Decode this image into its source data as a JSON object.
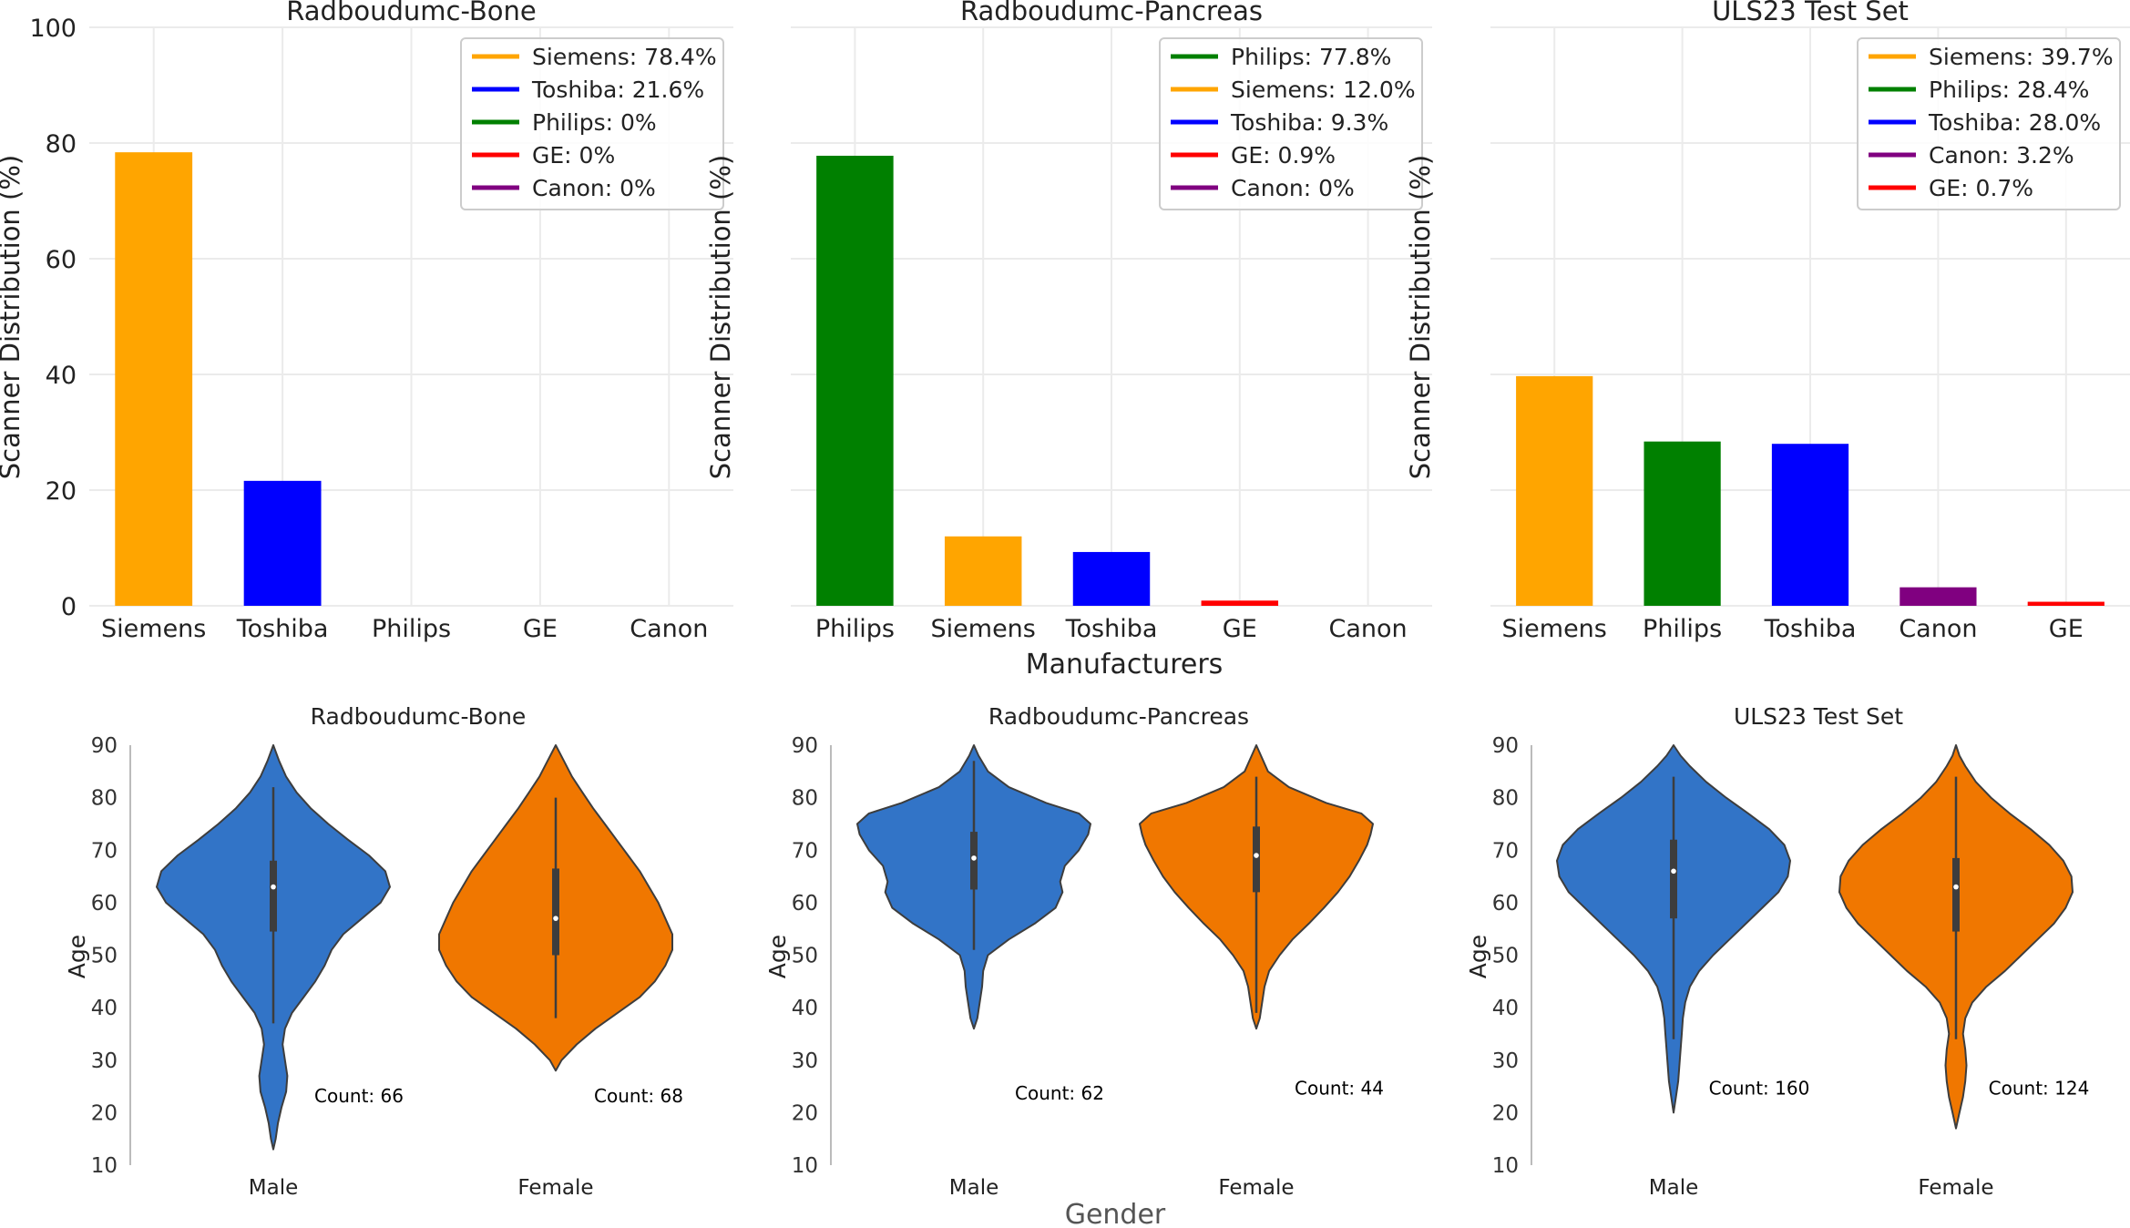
{
  "figure": {
    "top_xlabel": "Manufacturers",
    "bottom_xlabel": "Gender"
  },
  "colors": {
    "Siemens": "#ffa500",
    "Toshiba": "#0000ff",
    "Philips": "#008000",
    "GE": "#ff0000",
    "Canon": "#800080",
    "Male": "#3274c7",
    "Female": "#f07700",
    "grid": "#ebebeb"
  },
  "chart_data": [
    {
      "type": "bar",
      "title": "Radboudumc-Bone",
      "xlabel": "",
      "ylabel": "Scanner Distribution (%)",
      "ylim": [
        0,
        100
      ],
      "yticks": [
        0,
        20,
        40,
        60,
        80,
        100
      ],
      "categories": [
        "Siemens",
        "Toshiba",
        "Philips",
        "GE",
        "Canon"
      ],
      "values": [
        78.4,
        21.6,
        0,
        0,
        0
      ],
      "legend": [
        "Siemens: 78.4%",
        "Toshiba: 21.6%",
        "Philips: 0%",
        "GE: 0%",
        "Canon: 0%"
      ],
      "legend_keys": [
        "Siemens",
        "Toshiba",
        "Philips",
        "GE",
        "Canon"
      ],
      "legend_loc": "upper right"
    },
    {
      "type": "bar",
      "title": "Radboudumc-Pancreas",
      "xlabel": "Manufacturers",
      "ylabel": "Scanner Distribution (%)",
      "ylim": [
        0,
        100
      ],
      "categories": [
        "Philips",
        "Siemens",
        "Toshiba",
        "GE",
        "Canon"
      ],
      "values": [
        77.8,
        12.0,
        9.3,
        0.9,
        0
      ],
      "legend": [
        "Philips: 77.8%",
        "Siemens: 12.0%",
        "Toshiba: 9.3%",
        "GE: 0.9%",
        "Canon: 0%"
      ],
      "legend_keys": [
        "Philips",
        "Siemens",
        "Toshiba",
        "GE",
        "Canon"
      ],
      "legend_loc": "upper right"
    },
    {
      "type": "bar",
      "title": "ULS23 Test Set",
      "xlabel": "",
      "ylabel": "Scanner Distribution (%)",
      "ylim": [
        0,
        100
      ],
      "categories": [
        "Siemens",
        "Philips",
        "Toshiba",
        "Canon",
        "GE"
      ],
      "values": [
        39.7,
        28.4,
        28.0,
        3.2,
        0.7
      ],
      "legend": [
        "Siemens: 39.7%",
        "Philips: 28.4%",
        "Toshiba: 28.0%",
        "Canon: 3.2%",
        "GE: 0.7%"
      ],
      "legend_keys": [
        "Siemens",
        "Philips",
        "Toshiba",
        "Canon",
        "GE"
      ],
      "legend_loc": "upper right"
    },
    {
      "type": "violin",
      "title": "Radboudumc-Bone",
      "xlabel": "",
      "ylabel": "Age",
      "ylim": [
        10,
        90
      ],
      "yticks": [
        10,
        20,
        30,
        40,
        50,
        60,
        70,
        80,
        90
      ],
      "groups": [
        {
          "name": "Male",
          "count_label": "Count: 66",
          "count_y": 23,
          "whisker": [
            37,
            82
          ],
          "quartiles": [
            54.5,
            68
          ],
          "median": 63,
          "range": [
            13,
            90
          ],
          "profile": [
            [
              13,
              0
            ],
            [
              15,
              0.02
            ],
            [
              18,
              0.04
            ],
            [
              21,
              0.07
            ],
            [
              24,
              0.11
            ],
            [
              27,
              0.12
            ],
            [
              30,
              0.1
            ],
            [
              33,
              0.08
            ],
            [
              36,
              0.1
            ],
            [
              39,
              0.16
            ],
            [
              42,
              0.26
            ],
            [
              45,
              0.36
            ],
            [
              48,
              0.44
            ],
            [
              51,
              0.5
            ],
            [
              54,
              0.6
            ],
            [
              57,
              0.76
            ],
            [
              60,
              0.92
            ],
            [
              63,
              1.0
            ],
            [
              66,
              0.96
            ],
            [
              69,
              0.82
            ],
            [
              72,
              0.64
            ],
            [
              75,
              0.47
            ],
            [
              78,
              0.32
            ],
            [
              81,
              0.2
            ],
            [
              84,
              0.11
            ],
            [
              87,
              0.05
            ],
            [
              90,
              0
            ]
          ]
        },
        {
          "name": "Female",
          "count_label": "Count: 68",
          "count_y": 23,
          "whisker": [
            38,
            80
          ],
          "quartiles": [
            50,
            66.5
          ],
          "median": 57,
          "range": [
            28,
            90
          ],
          "profile": [
            [
              28,
              0
            ],
            [
              30,
              0.05
            ],
            [
              33,
              0.18
            ],
            [
              36,
              0.34
            ],
            [
              39,
              0.53
            ],
            [
              42,
              0.72
            ],
            [
              45,
              0.85
            ],
            [
              48,
              0.94
            ],
            [
              51,
              1.0
            ],
            [
              54,
              1.0
            ],
            [
              57,
              0.94
            ],
            [
              60,
              0.88
            ],
            [
              63,
              0.8
            ],
            [
              66,
              0.72
            ],
            [
              69,
              0.62
            ],
            [
              72,
              0.52
            ],
            [
              75,
              0.42
            ],
            [
              78,
              0.32
            ],
            [
              81,
              0.23
            ],
            [
              84,
              0.14
            ],
            [
              87,
              0.07
            ],
            [
              90,
              0
            ]
          ]
        }
      ]
    },
    {
      "type": "violin",
      "title": "Radboudumc-Pancreas",
      "xlabel": "Gender",
      "ylabel": "Age",
      "ylim": [
        10,
        90
      ],
      "yticks": [
        10,
        20,
        30,
        40,
        50,
        60,
        70,
        80,
        90
      ],
      "groups": [
        {
          "name": "Male",
          "count_label": "Count: 62",
          "count_y": 23.5,
          "whisker": [
            51,
            87
          ],
          "quartiles": [
            62.5,
            73.5
          ],
          "median": 68.5,
          "range": [
            36,
            90
          ],
          "profile": [
            [
              36,
              0
            ],
            [
              38,
              0.03
            ],
            [
              41,
              0.05
            ],
            [
              44,
              0.07
            ],
            [
              47,
              0.08
            ],
            [
              50,
              0.12
            ],
            [
              53,
              0.3
            ],
            [
              56,
              0.52
            ],
            [
              59,
              0.7
            ],
            [
              62,
              0.76
            ],
            [
              64,
              0.74
            ],
            [
              67,
              0.78
            ],
            [
              70,
              0.9
            ],
            [
              73,
              0.98
            ],
            [
              75,
              1.0
            ],
            [
              77,
              0.9
            ],
            [
              79,
              0.62
            ],
            [
              82,
              0.3
            ],
            [
              85,
              0.12
            ],
            [
              88,
              0.04
            ],
            [
              90,
              0
            ]
          ]
        },
        {
          "name": "Female",
          "count_label": "Count: 44",
          "count_y": 24.5,
          "whisker": [
            39,
            84
          ],
          "quartiles": [
            62,
            74.5
          ],
          "median": 69,
          "range": [
            36,
            90
          ],
          "profile": [
            [
              36,
              0
            ],
            [
              38,
              0.03
            ],
            [
              41,
              0.05
            ],
            [
              44,
              0.07
            ],
            [
              47,
              0.11
            ],
            [
              50,
              0.2
            ],
            [
              53,
              0.31
            ],
            [
              56,
              0.45
            ],
            [
              59,
              0.58
            ],
            [
              62,
              0.7
            ],
            [
              65,
              0.8
            ],
            [
              68,
              0.88
            ],
            [
              71,
              0.95
            ],
            [
              73,
              0.98
            ],
            [
              75,
              1.0
            ],
            [
              77,
              0.9
            ],
            [
              79,
              0.6
            ],
            [
              82,
              0.28
            ],
            [
              85,
              0.1
            ],
            [
              88,
              0.04
            ],
            [
              90,
              0
            ]
          ]
        }
      ]
    },
    {
      "type": "violin",
      "title": "ULS23 Test Set",
      "xlabel": "",
      "ylabel": "Age",
      "ylim": [
        10,
        90
      ],
      "yticks": [
        10,
        20,
        30,
        40,
        50,
        60,
        70,
        80,
        90
      ],
      "groups": [
        {
          "name": "Male",
          "count_label": "Count: 160",
          "count_y": 24.5,
          "whisker": [
            34,
            84
          ],
          "quartiles": [
            57,
            72
          ],
          "median": 66,
          "range": [
            20,
            90
          ],
          "profile": [
            [
              20,
              0
            ],
            [
              23,
              0.02
            ],
            [
              26,
              0.04
            ],
            [
              29,
              0.05
            ],
            [
              32,
              0.06
            ],
            [
              35,
              0.07
            ],
            [
              38,
              0.08
            ],
            [
              41,
              0.1
            ],
            [
              44,
              0.14
            ],
            [
              47,
              0.22
            ],
            [
              50,
              0.34
            ],
            [
              53,
              0.48
            ],
            [
              56,
              0.62
            ],
            [
              59,
              0.76
            ],
            [
              62,
              0.9
            ],
            [
              65,
              0.98
            ],
            [
              68,
              1.0
            ],
            [
              71,
              0.95
            ],
            [
              74,
              0.82
            ],
            [
              77,
              0.64
            ],
            [
              80,
              0.45
            ],
            [
              83,
              0.28
            ],
            [
              86,
              0.14
            ],
            [
              88,
              0.06
            ],
            [
              90,
              0
            ]
          ]
        },
        {
          "name": "Female",
          "count_label": "Count: 124",
          "count_y": 24.5,
          "whisker": [
            34,
            84
          ],
          "quartiles": [
            54.5,
            68.5
          ],
          "median": 63,
          "range": [
            17,
            90
          ],
          "profile": [
            [
              17,
              0
            ],
            [
              20,
              0.03
            ],
            [
              23,
              0.06
            ],
            [
              26,
              0.08
            ],
            [
              29,
              0.09
            ],
            [
              32,
              0.08
            ],
            [
              35,
              0.06
            ],
            [
              38,
              0.08
            ],
            [
              41,
              0.14
            ],
            [
              44,
              0.26
            ],
            [
              47,
              0.42
            ],
            [
              50,
              0.56
            ],
            [
              53,
              0.7
            ],
            [
              56,
              0.84
            ],
            [
              59,
              0.94
            ],
            [
              62,
              1.0
            ],
            [
              65,
              0.99
            ],
            [
              68,
              0.92
            ],
            [
              71,
              0.8
            ],
            [
              74,
              0.64
            ],
            [
              77,
              0.46
            ],
            [
              80,
              0.3
            ],
            [
              83,
              0.17
            ],
            [
              86,
              0.08
            ],
            [
              88,
              0.03
            ],
            [
              90,
              0
            ]
          ]
        }
      ]
    }
  ]
}
